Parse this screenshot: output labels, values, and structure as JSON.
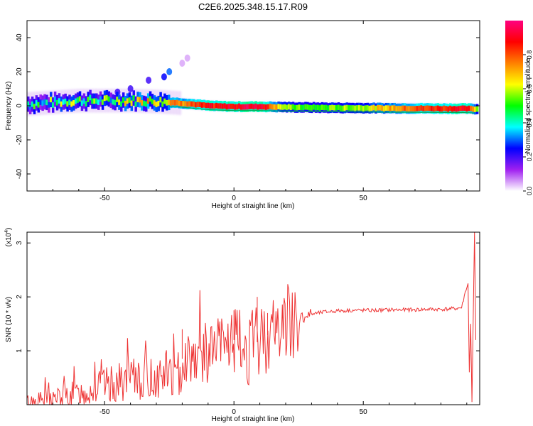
{
  "title": "C2E6.2025.348.15.17.R09",
  "chart_data": [
    {
      "type": "heatmap",
      "xlabel": "Height of straight line (km)",
      "ylabel": "Frequency (Hz)",
      "xlim": [
        -80,
        95
      ],
      "ylim": [
        -50,
        50
      ],
      "xticks": [
        -50,
        0,
        50
      ],
      "yticks": [
        -40,
        -20,
        0,
        20,
        40
      ],
      "colorbar": {
        "label": "Normalized spectral amplitude",
        "range": [
          0,
          1
        ],
        "ticks": [
          "0.0",
          "0.2",
          "0.4",
          "0.6",
          "0.8"
        ],
        "colors": [
          "#ffffff",
          "#a020f0",
          "#0000ff",
          "#00ffff",
          "#00ff00",
          "#ffff00",
          "#ff8000",
          "#ff0000",
          "#ff0080"
        ]
      },
      "ridge": {
        "x": [
          -80,
          -70,
          -60,
          -50,
          -40,
          -30,
          -20,
          -10,
          0,
          10,
          20,
          30,
          40,
          50,
          60,
          70,
          80,
          90,
          94
        ],
        "freq": [
          1,
          2,
          3,
          3,
          3,
          2.5,
          1.5,
          0,
          -0.5,
          -0.5,
          -0.8,
          -1,
          -1.2,
          -1.3,
          -1.4,
          -1.5,
          -1.6,
          -1.7,
          -2
        ],
        "amplitude": [
          0.4,
          0.45,
          0.5,
          0.45,
          0.55,
          0.7,
          0.75,
          0.85,
          0.9,
          0.95,
          0.55,
          0.5,
          0.55,
          0.6,
          0.7,
          0.8,
          0.85,
          0.9,
          0.5
        ]
      },
      "scatter_blobs": [
        {
          "x": -25,
          "freq": 20,
          "amplitude": 0.3
        },
        {
          "x": -27,
          "freq": 17,
          "amplitude": 0.25
        },
        {
          "x": -33,
          "freq": 15,
          "amplitude": 0.2
        },
        {
          "x": -40,
          "freq": 10,
          "amplitude": 0.2
        },
        {
          "x": -45,
          "freq": 8,
          "amplitude": 0.2
        },
        {
          "x": -20,
          "freq": 25,
          "amplitude": 0.05
        },
        {
          "x": -18,
          "freq": 28,
          "amplitude": 0.05
        }
      ]
    },
    {
      "type": "line",
      "xlabel": "Height of straight line (km)",
      "ylabel": "SNR (10 * v/v)",
      "yscale_label": "(x10",
      "yscale_exp": "4",
      "xlim": [
        -80,
        95
      ],
      "ylim": [
        0,
        3.2
      ],
      "xticks": [
        -50,
        0,
        50
      ],
      "yticks": [
        1,
        2,
        3
      ],
      "color": "#ee3333",
      "series": [
        {
          "x": [
            -80,
            -75,
            -70,
            -65,
            -60,
            -55,
            -50,
            -45,
            -40,
            -35,
            -30,
            -25,
            -22,
            -20,
            -15,
            -10,
            -5,
            0,
            5,
            10,
            15,
            20,
            25,
            30,
            35,
            40,
            45,
            50,
            55,
            60,
            65,
            70,
            75,
            80,
            85,
            88,
            90,
            91,
            92,
            93
          ],
          "y": [
            0.05,
            0.08,
            0.12,
            0.15,
            0.2,
            0.28,
            0.35,
            0.4,
            0.45,
            0.5,
            0.5,
            0.6,
            0.4,
            0.85,
            0.95,
            0.95,
            1.1,
            1.2,
            1.0,
            1.2,
            1.35,
            1.5,
            1.6,
            1.68,
            1.72,
            1.74,
            1.75,
            1.75,
            1.75,
            1.76,
            1.76,
            1.76,
            1.77,
            1.77,
            1.78,
            1.8,
            2.2,
            0.6,
            0.05,
            3.2
          ]
        }
      ]
    }
  ]
}
